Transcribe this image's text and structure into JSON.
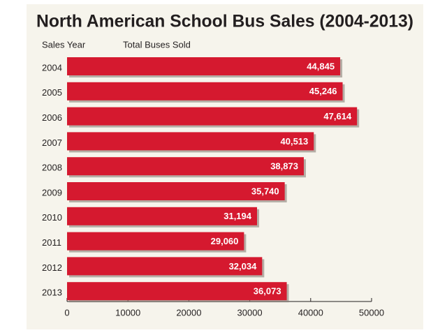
{
  "chart_data": {
    "type": "hbar",
    "title": "North American School Bus Sales (2004-2013)",
    "y_label": "Sales Year",
    "x_label": "Total Buses Sold",
    "categories": [
      "2004",
      "2005",
      "2006",
      "2007",
      "2008",
      "2009",
      "2010",
      "2011",
      "2012",
      "2013"
    ],
    "values": [
      44845,
      45246,
      47614,
      40513,
      38873,
      35740,
      31194,
      29060,
      32034,
      36073
    ],
    "value_labels": [
      "44,845",
      "45,246",
      "47,614",
      "40,513",
      "38,873",
      "35,740",
      "31,194",
      "29,060",
      "32,034",
      "36,073"
    ],
    "color": "#d5192f",
    "xlim": [
      0,
      50000
    ],
    "xticks": [
      0,
      10000,
      20000,
      30000,
      40000,
      50000
    ]
  }
}
